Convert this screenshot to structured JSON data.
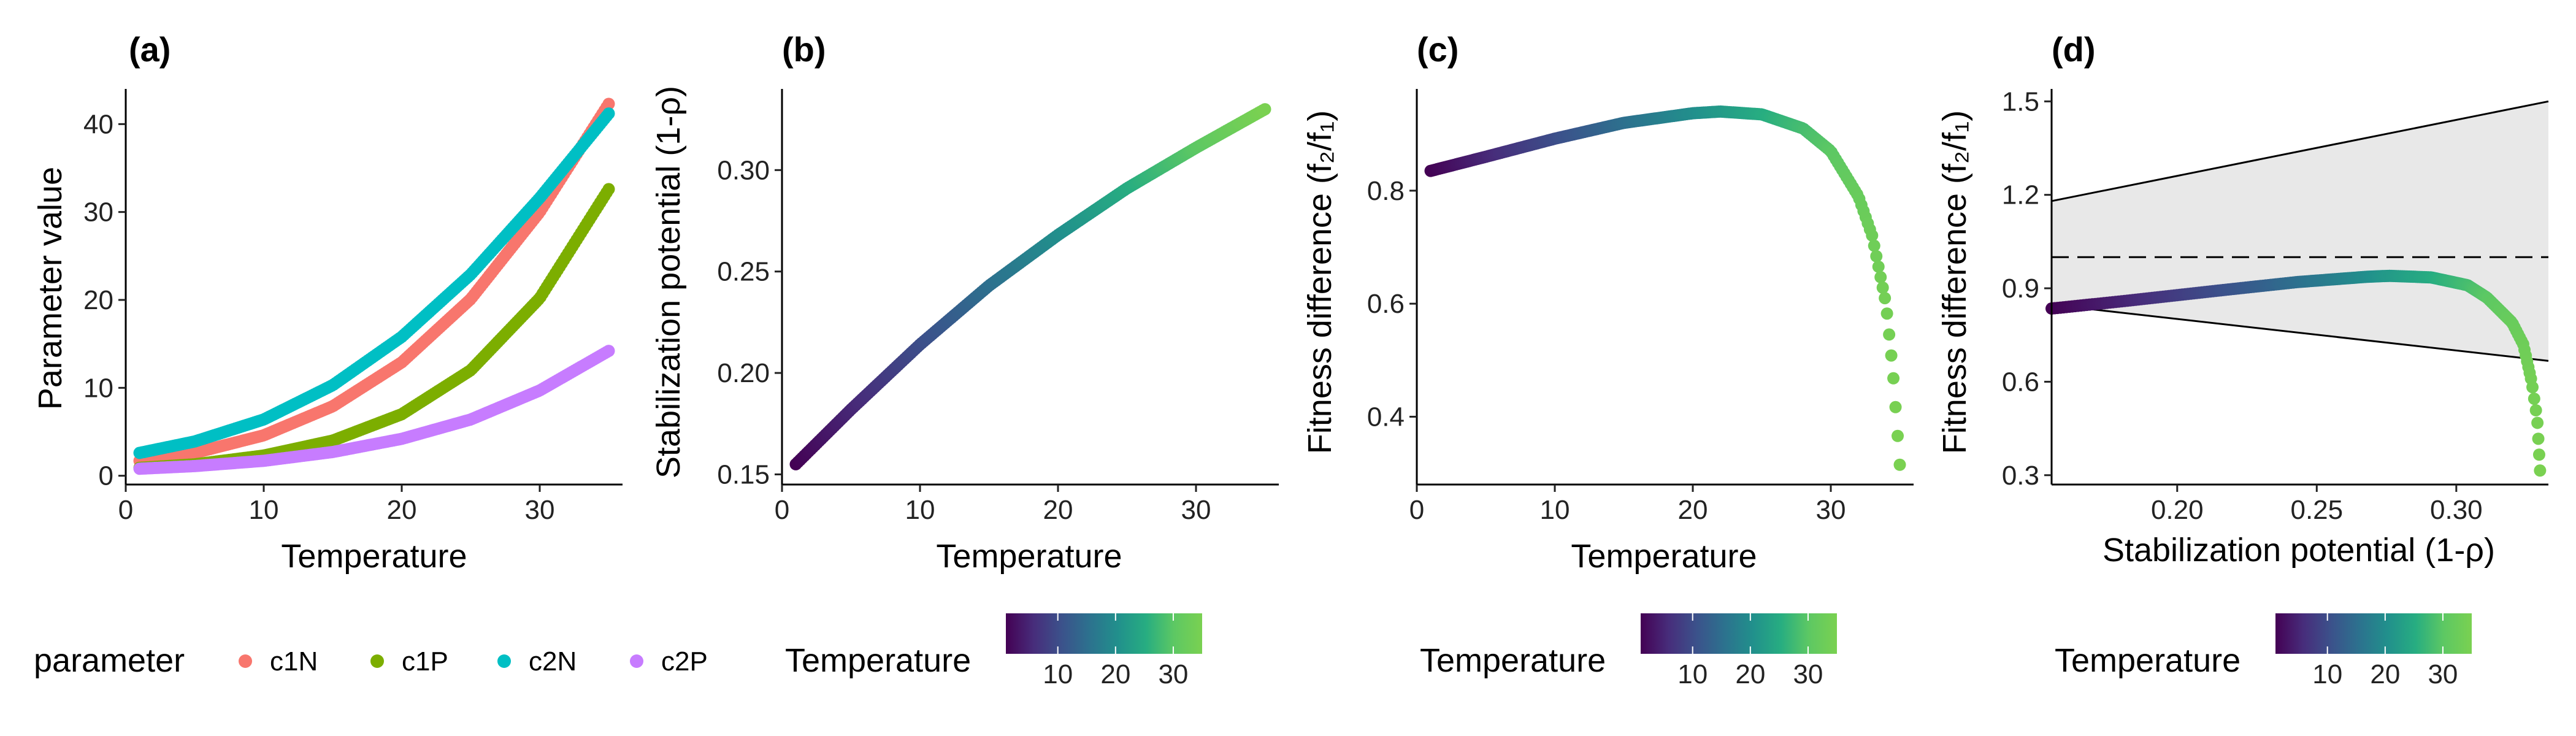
{
  "chart_data": [
    {
      "panel_label": "(a)",
      "type": "scatter",
      "xlabel": "Temperature",
      "ylabel": "Parameter value",
      "xlim": [
        0,
        36
      ],
      "ylim": [
        -1,
        44
      ],
      "xticks": [
        0,
        10,
        20,
        30
      ],
      "yticks": [
        0,
        10,
        20,
        30,
        40
      ],
      "grid": false,
      "legend": {
        "title": "parameter",
        "placement": "bottom",
        "entries": [
          "c1N",
          "c1P",
          "c2N",
          "c2P"
        ]
      },
      "series": [
        {
          "name": "c1N",
          "color": "#F8766D",
          "x": [
            1,
            5,
            10,
            15,
            20,
            25,
            30,
            35
          ],
          "y": [
            1.7,
            2.6,
            4.6,
            7.9,
            12.9,
            20.1,
            30.0,
            42.3
          ]
        },
        {
          "name": "c1P",
          "color": "#7CAE00",
          "x": [
            1,
            5,
            10,
            15,
            20,
            25,
            30,
            35
          ],
          "y": [
            0.9,
            1.3,
            2.3,
            4.0,
            7.0,
            12.0,
            20.2,
            32.6
          ]
        },
        {
          "name": "c2N",
          "color": "#00BFC4",
          "x": [
            1,
            5,
            10,
            15,
            20,
            25,
            30,
            35
          ],
          "y": [
            2.6,
            3.9,
            6.4,
            10.3,
            15.8,
            22.9,
            31.6,
            41.2
          ]
        },
        {
          "name": "c2P",
          "color": "#C77CFF",
          "x": [
            1,
            5,
            10,
            15,
            20,
            25,
            30,
            35
          ],
          "y": [
            0.8,
            1.1,
            1.7,
            2.7,
            4.2,
            6.4,
            9.7,
            14.2
          ]
        }
      ]
    },
    {
      "panel_label": "(b)",
      "type": "scatter",
      "xlabel": "Temperature",
      "ylabel": "Stabilization potential (1-ρ)",
      "xlim": [
        0,
        36
      ],
      "ylim": [
        0.145,
        0.34
      ],
      "xticks": [
        0,
        10,
        20,
        30
      ],
      "yticks": [
        0.15,
        0.2,
        0.25,
        0.3
      ],
      "grid": false,
      "color_by": "Temperature",
      "series": [
        {
          "x": [
            1,
            5,
            10,
            15,
            20,
            25,
            30,
            35
          ],
          "y": [
            0.155,
            0.182,
            0.214,
            0.243,
            0.268,
            0.291,
            0.311,
            0.33
          ]
        }
      ]
    },
    {
      "panel_label": "(c)",
      "type": "scatter",
      "xlabel": "Temperature",
      "ylabel": "Fitness difference (f₂/f₁)",
      "xlim": [
        0,
        36
      ],
      "ylim": [
        0.28,
        0.98
      ],
      "xticks": [
        0,
        10,
        20,
        30
      ],
      "yticks": [
        0.4,
        0.6,
        0.8
      ],
      "grid": false,
      "color_by": "Temperature",
      "series": [
        {
          "x": [
            1,
            5,
            10,
            15,
            20,
            22,
            25,
            28,
            30,
            32,
            33,
            34,
            34.5,
            35
          ],
          "y": [
            0.835,
            0.86,
            0.892,
            0.92,
            0.937,
            0.94,
            0.935,
            0.91,
            0.87,
            0.79,
            0.72,
            0.6,
            0.48,
            0.315
          ]
        }
      ]
    },
    {
      "panel_label": "(d)",
      "type": "scatter",
      "xlabel": "Stabilization potential (1-ρ)",
      "ylabel": "Fitness difference (f₂/f₁)",
      "xlim": [
        0.155,
        0.333
      ],
      "ylim": [
        0.27,
        1.54
      ],
      "xticks": [
        0.2,
        0.25,
        0.3
      ],
      "yticks": [
        0.3,
        0.6,
        0.9,
        1.2,
        1.5
      ],
      "grid": false,
      "color_by": "Temperature",
      "reference_line": 1.0,
      "coexistence_region": {
        "x": [
          0.155,
          0.333
        ],
        "upper": [
          1.18,
          1.5
        ],
        "lower": [
          0.847,
          0.667
        ]
      },
      "series": [
        {
          "x": [
            0.155,
            0.182,
            0.214,
            0.243,
            0.268,
            0.276,
            0.291,
            0.304,
            0.311,
            0.32,
            0.324,
            0.327,
            0.329,
            0.33
          ],
          "y": [
            0.835,
            0.86,
            0.892,
            0.92,
            0.937,
            0.94,
            0.935,
            0.91,
            0.87,
            0.79,
            0.72,
            0.6,
            0.48,
            0.315
          ]
        }
      ]
    }
  ],
  "colorbar": {
    "title": "Temperature",
    "ticks": [
      10,
      20,
      30
    ],
    "range": [
      1,
      35
    ],
    "palette": [
      "#440154",
      "#472D7B",
      "#3B528B",
      "#2C728E",
      "#21908C",
      "#27AD81",
      "#5DC863",
      "#7AD151"
    ]
  }
}
